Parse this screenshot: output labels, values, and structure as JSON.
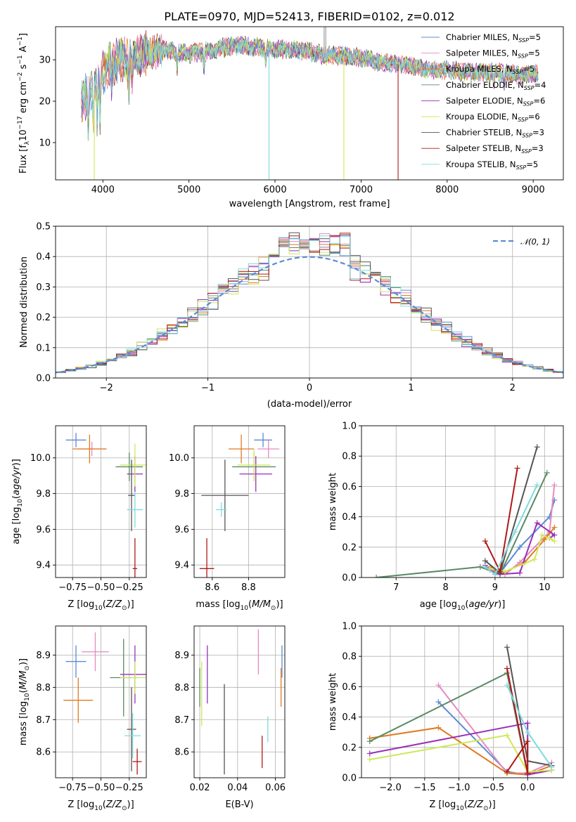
{
  "title": "PLATE=0970, MJD=52413, FIBERID=0102, z=0.012",
  "colors": {
    "Chabrier MILES": "#5b8bd6",
    "Salpeter MILES": "#e58ac0",
    "Kroupa MILES": "#e07a20",
    "Chabrier ELODIE": "#5a8a64",
    "Salpeter ELODIE": "#9a2fb8",
    "Kroupa ELODIE": "#cfe85a",
    "Chabrier STELIB": "#555555",
    "Salpeter STELIB": "#b01818",
    "Kroupa STELIB": "#7fd9de"
  },
  "chart_data": [
    {
      "id": "spectrum",
      "type": "line",
      "xlabel": "wavelength [Angstrom, rest frame]",
      "ylabel": "Flux [f$_\\lambda$10$^{-17}$ erg cm$^{-2}$ s$^{-1}$ A$^{-1}$]",
      "ylabel_parts": [
        "Flux [f",
        "λ",
        "10",
        "−17",
        " erg cm",
        "−2",
        " s",
        "−1",
        " A",
        "−1",
        "]"
      ],
      "xlim": [
        3450,
        9350
      ],
      "ylim": [
        1,
        38
      ],
      "xticks": [
        4000,
        5000,
        6000,
        7000,
        8000,
        9000
      ],
      "yticks": [
        10,
        20,
        30
      ],
      "grid": false,
      "legend": "top-right",
      "series": [
        {
          "name": "Chabrier MILES, N$_{SSP}$=5",
          "label": "Chabrier MILES, N",
          "n": "5",
          "key": "Chabrier MILES"
        },
        {
          "name": "Salpeter MILES, N$_{SSP}$=5",
          "label": "Salpeter MILES, N",
          "n": "5",
          "key": "Salpeter MILES"
        },
        {
          "name": "Kroupa MILES, N$_{SSP}$=5",
          "label": "Kroupa MILES, N",
          "n": "5",
          "key": "Kroupa MILES"
        },
        {
          "name": "Chabrier ELODIE, N$_{SSP}$=4",
          "label": "Chabrier ELODIE, N",
          "n": "4",
          "key": "Chabrier ELODIE"
        },
        {
          "name": "Salpeter ELODIE, N$_{SSP}$=6",
          "label": "Salpeter ELODIE, N",
          "n": "6",
          "key": "Salpeter ELODIE"
        },
        {
          "name": "Kroupa ELODIE, N$_{SSP}$=6",
          "label": "Kroupa ELODIE, N",
          "n": "6",
          "key": "Kroupa ELODIE"
        },
        {
          "name": "Chabrier STELIB, N$_{SSP}$=3",
          "label": "Chabrier STELIB, N",
          "n": "3",
          "key": "Chabrier STELIB"
        },
        {
          "name": "Salpeter STELIB, N$_{SSP}$=3",
          "label": "Salpeter STELIB, N",
          "n": "3",
          "key": "Salpeter STELIB"
        },
        {
          "name": "Kroupa STELIB, N$_{SSP}$=5",
          "label": "Kroupa STELIB, N",
          "n": "5",
          "key": "Kroupa STELIB"
        }
      ],
      "continuum": {
        "x": [
          3750,
          3800,
          3900,
          4000,
          4100,
          4200,
          4300,
          4400,
          4500,
          4600,
          4700,
          4800,
          5000,
          5200,
          5400,
          5600,
          5800,
          6000,
          6200,
          6400,
          6600,
          6800,
          7000,
          7200,
          7400,
          7600,
          7800,
          8000,
          8200,
          8400,
          8600,
          8800,
          9050
        ],
        "y": [
          19,
          21,
          24,
          27,
          29,
          30.5,
          29.5,
          31,
          31.5,
          31.8,
          32.5,
          32,
          31.5,
          32,
          33,
          33.5,
          33,
          32.5,
          32.5,
          32,
          31,
          31,
          30.5,
          29.5,
          29,
          28.5,
          27.5,
          27.5,
          27,
          27,
          27,
          26.5,
          26.5
        ]
      },
      "data_xrange": [
        3750,
        9060
      ],
      "model_dips": [
        {
          "key": "Kroupa ELODIE",
          "x": 3900,
          "to": 1
        },
        {
          "key": "Kroupa STELIB",
          "x": 5930,
          "to": 1
        },
        {
          "key": "Kroupa ELODIE",
          "x": 6800,
          "to": 1
        },
        {
          "key": "Salpeter STELIB",
          "x": 7430,
          "to": 1
        }
      ],
      "spikes": [
        {
          "x": 6570,
          "to": 38
        },
        {
          "x": 6590,
          "to": 38
        }
      ]
    },
    {
      "id": "residuals",
      "type": "histogram",
      "xlabel": "(data-model)/error",
      "ylabel": "Normed distribution",
      "xlim": [
        -2.5,
        2.5
      ],
      "ylim": [
        0,
        0.5
      ],
      "xticks": [
        -2,
        -1,
        0,
        1,
        2
      ],
      "xtick_labels": [
        "−2",
        "−1",
        "0",
        "1",
        "2"
      ],
      "yticks": [
        0.0,
        0.1,
        0.2,
        0.3,
        0.4,
        0.5
      ],
      "ytick_labels": [
        "0.0",
        "0.1",
        "0.2",
        "0.3",
        "0.4",
        "0.5"
      ],
      "grid": true,
      "legend": "top-right",
      "reference": {
        "name": "$\\mathcal{N}(0,1)$",
        "label": "𝒩(0, 1)",
        "color": "#5b8bd6",
        "style": "dashed"
      },
      "bin_width": 0.1,
      "peak_bins": [
        0.48,
        0.47,
        0.46,
        0.48,
        0.45,
        0.47
      ]
    },
    {
      "id": "age_vs_Z",
      "type": "scatter",
      "xlabel": "Z [log$_{10}$(Z/Z$_\\odot$)]",
      "xlabel_text": "Z [log",
      "ylabel": "age  [log$_{10}$(age/yr)]",
      "ylabel_text": "age  [log",
      "xlim": [
        -0.9,
        -0.1
      ],
      "ylim": [
        9.33,
        10.18
      ],
      "xticks": [
        -0.75,
        -0.5,
        -0.25
      ],
      "xtick_labels": [
        "−0.75",
        "−0.50",
        "−0.25"
      ],
      "yticks": [
        9.4,
        9.6,
        9.8,
        10.0
      ],
      "ytick_labels": [
        "9.4",
        "9.6",
        "9.8",
        "10.0"
      ],
      "grid": true,
      "points": [
        {
          "key": "Chabrier MILES",
          "x": -0.72,
          "xerr": 0.09,
          "y": 10.1,
          "yerr": 0.04
        },
        {
          "key": "Salpeter MILES",
          "x": -0.58,
          "xerr": 0.12,
          "y": 10.05,
          "yerr": 0.04
        },
        {
          "key": "Kroupa MILES",
          "x": -0.6,
          "xerr": 0.15,
          "y": 10.05,
          "yerr": 0.08
        },
        {
          "key": "Chabrier ELODIE",
          "x": -0.25,
          "xerr": 0.12,
          "y": 9.95,
          "yerr": 0.08
        },
        {
          "key": "Salpeter ELODIE",
          "x": -0.2,
          "xerr": 0.07,
          "y": 9.91,
          "yerr": 0.1
        },
        {
          "key": "Kroupa ELODIE",
          "x": -0.2,
          "xerr": 0.13,
          "y": 9.96,
          "yerr": 0.12
        },
        {
          "key": "Chabrier STELIB",
          "x": -0.23,
          "xerr": 0.03,
          "y": 9.79,
          "yerr": 0.2
        },
        {
          "key": "Salpeter STELIB",
          "x": -0.2,
          "xerr": 0.02,
          "y": 9.38,
          "yerr": 0.17
        },
        {
          "key": "Kroupa STELIB",
          "x": -0.2,
          "xerr": 0.07,
          "y": 9.71,
          "yerr": 0.1
        }
      ]
    },
    {
      "id": "age_vs_mass",
      "type": "scatter",
      "xlabel": "mass [log$_{10}$(M/M$_\\odot$)]",
      "xlabel_text": "mass [log",
      "ylabel": "",
      "xlim": [
        8.5,
        9.0
      ],
      "ylim": [
        9.33,
        10.18
      ],
      "xticks": [
        8.6,
        8.8
      ],
      "xtick_labels": [
        "8.6",
        "8.8"
      ],
      "yticks": [
        9.4,
        9.6,
        9.8,
        10.0
      ],
      "ytick_labels": [
        "9.4",
        "9.6",
        "9.8",
        "10.0"
      ],
      "grid": true,
      "points": [
        {
          "key": "Chabrier MILES",
          "x": 8.88,
          "xerr": 0.05,
          "y": 10.1,
          "yerr": 0.04
        },
        {
          "key": "Salpeter MILES",
          "x": 8.91,
          "xerr": 0.06,
          "y": 10.05,
          "yerr": 0.05
        },
        {
          "key": "Kroupa MILES",
          "x": 8.76,
          "xerr": 0.07,
          "y": 10.05,
          "yerr": 0.08
        },
        {
          "key": "Chabrier ELODIE",
          "x": 8.83,
          "xerr": 0.12,
          "y": 9.95,
          "yerr": 0.08
        },
        {
          "key": "Salpeter ELODIE",
          "x": 8.84,
          "xerr": 0.09,
          "y": 9.91,
          "yerr": 0.1
        },
        {
          "key": "Kroupa ELODIE",
          "x": 8.83,
          "xerr": 0.09,
          "y": 9.96,
          "yerr": 0.09
        },
        {
          "key": "Chabrier STELIB",
          "x": 8.67,
          "xerr": 0.13,
          "y": 9.79,
          "yerr": 0.2
        },
        {
          "key": "Salpeter STELIB",
          "x": 8.57,
          "xerr": 0.04,
          "y": 9.38,
          "yerr": 0.17
        },
        {
          "key": "Kroupa STELIB",
          "x": 8.65,
          "xerr": 0.03,
          "y": 9.71,
          "yerr": 0.04
        }
      ]
    },
    {
      "id": "weight_vs_age",
      "type": "line",
      "xlabel": "age  [log$_{10}$(age/yr)]",
      "xlabel_text": "age  [log",
      "ylabel": "mass weight",
      "xlim": [
        6.3,
        10.38
      ],
      "ylim": [
        0,
        1
      ],
      "xticks": [
        7,
        8,
        9,
        10
      ],
      "xtick_labels": [
        "7",
        "8",
        "9",
        "10"
      ],
      "yticks": [
        0.0,
        0.2,
        0.4,
        0.6,
        0.8,
        1.0
      ],
      "ytick_labels": [
        "0.0",
        "0.2",
        "0.4",
        "0.6",
        "0.8",
        "1.0"
      ],
      "grid": true,
      "series": [
        {
          "key": "Chabrier MILES",
          "x": [
            8.9,
            9.1,
            9.5,
            10.1,
            10.2
          ],
          "y": [
            0.07,
            0.03,
            0.2,
            0.4,
            0.51
          ]
        },
        {
          "key": "Salpeter MILES",
          "x": [
            8.9,
            9.2,
            9.5,
            10.1,
            10.2
          ],
          "y": [
            0.05,
            0.02,
            0.1,
            0.3,
            0.61
          ]
        },
        {
          "key": "Kroupa MILES",
          "x": [
            8.9,
            9.1,
            9.6,
            10.0,
            10.2
          ],
          "y": [
            0.07,
            0.02,
            0.1,
            0.25,
            0.33
          ]
        },
        {
          "key": "Chabrier ELODIE",
          "x": [
            6.6,
            8.7,
            9.1,
            10.05
          ],
          "y": [
            0.0,
            0.07,
            0.02,
            0.69
          ]
        },
        {
          "key": "Salpeter ELODIE",
          "x": [
            8.8,
            9.0,
            9.5,
            9.85,
            10.2,
            10.1
          ],
          "y": [
            0.08,
            0.02,
            0.03,
            0.36,
            0.28,
            0.26
          ]
        },
        {
          "key": "Kroupa ELODIE",
          "x": [
            8.9,
            9.2,
            9.8,
            9.95,
            10.2,
            10.1
          ],
          "y": [
            0.06,
            0.04,
            0.12,
            0.28,
            0.24,
            0.26
          ]
        },
        {
          "key": "Chabrier STELIB",
          "x": [
            8.8,
            9.1,
            9.85
          ],
          "y": [
            0.11,
            0.03,
            0.86
          ]
        },
        {
          "key": "Salpeter STELIB",
          "x": [
            8.8,
            9.1,
            9.45
          ],
          "y": [
            0.24,
            0.04,
            0.72
          ]
        },
        {
          "key": "Kroupa STELIB",
          "x": [
            8.8,
            9.0,
            9.4,
            9.85
          ],
          "y": [
            0.07,
            0.02,
            0.3,
            0.61
          ]
        }
      ]
    },
    {
      "id": "mass_vs_Z",
      "type": "scatter",
      "xlabel": "Z [log$_{10}$(Z/Z$_\\odot$)]",
      "xlabel_text": "Z [log",
      "ylabel": "mass [log$_{10}$(M/M$_\\odot$)]",
      "ylabel_text": "mass [log",
      "xlim": [
        -0.9,
        -0.1
      ],
      "ylim": [
        8.52,
        8.99
      ],
      "xticks": [
        -0.75,
        -0.5,
        -0.25
      ],
      "xtick_labels": [
        "−0.75",
        "−0.50",
        "−0.25"
      ],
      "yticks": [
        8.6,
        8.7,
        8.8,
        8.9
      ],
      "ytick_labels": [
        "8.6",
        "8.7",
        "8.8",
        "8.9"
      ],
      "grid": true,
      "points": [
        {
          "key": "Chabrier MILES",
          "x": -0.72,
          "xerr": 0.09,
          "y": 8.88,
          "yerr": 0.05
        },
        {
          "key": "Salpeter MILES",
          "x": -0.55,
          "xerr": 0.12,
          "y": 8.91,
          "yerr": 0.06
        },
        {
          "key": "Kroupa MILES",
          "x": -0.7,
          "xerr": 0.13,
          "y": 8.76,
          "yerr": 0.07
        },
        {
          "key": "Chabrier ELODIE",
          "x": -0.3,
          "xerr": 0.12,
          "y": 8.83,
          "yerr": 0.12
        },
        {
          "key": "Salpeter ELODIE",
          "x": -0.2,
          "xerr": 0.13,
          "y": 8.84,
          "yerr": 0.09
        },
        {
          "key": "Kroupa ELODIE",
          "x": -0.2,
          "xerr": 0.13,
          "y": 8.83,
          "yerr": 0.05
        },
        {
          "key": "Chabrier STELIB",
          "x": -0.23,
          "xerr": 0.04,
          "y": 8.67,
          "yerr": 0.13
        },
        {
          "key": "Salpeter STELIB",
          "x": -0.18,
          "xerr": 0.04,
          "y": 8.57,
          "yerr": 0.04
        },
        {
          "key": "Kroupa STELIB",
          "x": -0.22,
          "xerr": 0.07,
          "y": 8.65,
          "yerr": 0.07
        }
      ]
    },
    {
      "id": "mass_vs_ebv",
      "type": "scatter",
      "xlabel": "E(B-V)",
      "ylabel": "",
      "xlim": [
        0.017,
        0.065
      ],
      "ylim": [
        8.52,
        8.99
      ],
      "xticks": [
        0.02,
        0.04,
        0.06
      ],
      "xtick_labels": [
        "0.02",
        "0.04",
        "0.06"
      ],
      "yticks": [
        8.6,
        8.7,
        8.8,
        8.9
      ],
      "ytick_labels": [
        "8.6",
        "8.7",
        "8.8",
        "8.9"
      ],
      "grid": true,
      "points": [
        {
          "key": "Chabrier MILES",
          "x": 0.0635,
          "y": 8.88,
          "yerr": 0.05
        },
        {
          "key": "Salpeter MILES",
          "x": 0.051,
          "y": 8.91,
          "yerr": 0.07
        },
        {
          "key": "Kroupa MILES",
          "x": 0.063,
          "y": 8.8,
          "yerr": 0.06
        },
        {
          "key": "Chabrier ELODIE",
          "x": 0.02,
          "y": 8.8,
          "yerr": 0.06
        },
        {
          "key": "Salpeter ELODIE",
          "x": 0.024,
          "y": 8.84,
          "yerr": 0.09
        },
        {
          "key": "Kroupa ELODIE",
          "x": 0.021,
          "y": 8.78,
          "yerr": 0.1
        },
        {
          "key": "Chabrier STELIB",
          "x": 0.033,
          "y": 8.67,
          "yerr": 0.14
        },
        {
          "key": "Salpeter STELIB",
          "x": 0.053,
          "y": 8.6,
          "yerr": 0.05
        },
        {
          "key": "Kroupa STELIB",
          "x": 0.056,
          "y": 8.67,
          "yerr": 0.04
        }
      ]
    },
    {
      "id": "weight_vs_Z",
      "type": "line",
      "xlabel": "Z [log$_{10}$(Z/Z$_\\odot$)]",
      "xlabel_text": "Z [log",
      "ylabel": "mass weight",
      "xlim": [
        -2.42,
        0.52
      ],
      "ylim": [
        0,
        1
      ],
      "xticks": [
        -2.0,
        -1.5,
        -1.0,
        -0.5,
        0.0
      ],
      "xtick_labels": [
        "−2.0",
        "−1.5",
        "−1.0",
        "−0.5",
        "0.0"
      ],
      "yticks": [
        0.0,
        0.2,
        0.4,
        0.6,
        0.8,
        1.0
      ],
      "ytick_labels": [
        "0.0",
        "0.2",
        "0.4",
        "0.6",
        "0.8",
        "1.0"
      ],
      "grid": true,
      "series": [
        {
          "key": "Chabrier MILES",
          "x": [
            -1.3,
            -0.3,
            0.0,
            0.35
          ],
          "y": [
            0.5,
            0.04,
            0.02,
            0.05
          ]
        },
        {
          "key": "Salpeter MILES",
          "x": [
            -1.3,
            -0.3,
            0.0,
            0.35
          ],
          "y": [
            0.61,
            0.03,
            0.03,
            0.1
          ]
        },
        {
          "key": "Kroupa MILES",
          "x": [
            -2.3,
            -1.3,
            -0.3,
            0.0,
            0.35
          ],
          "y": [
            0.26,
            0.33,
            0.03,
            0.02,
            0.08
          ]
        },
        {
          "key": "Chabrier ELODIE",
          "x": [
            -2.3,
            -0.3,
            0.0
          ],
          "y": [
            0.24,
            0.69,
            0.02
          ]
        },
        {
          "key": "Salpeter ELODIE",
          "x": [
            -2.3,
            0.0,
            0.0,
            0.35
          ],
          "y": [
            0.16,
            0.36,
            0.02,
            0.05
          ]
        },
        {
          "key": "Kroupa ELODIE",
          "x": [
            -2.3,
            -0.3,
            0.0,
            0.35
          ],
          "y": [
            0.12,
            0.28,
            0.04,
            0.05
          ]
        },
        {
          "key": "Chabrier STELIB",
          "x": [
            -0.3,
            0.0,
            0.35
          ],
          "y": [
            0.86,
            0.11,
            0.08
          ]
        },
        {
          "key": "Salpeter STELIB",
          "x": [
            -0.3,
            0.0,
            0.0,
            -0.3
          ],
          "y": [
            0.72,
            0.03,
            0.24,
            0.04
          ]
        },
        {
          "key": "Kroupa STELIB",
          "x": [
            -0.3,
            0.0,
            0.35
          ],
          "y": [
            0.61,
            0.3,
            0.07
          ]
        }
      ]
    }
  ]
}
